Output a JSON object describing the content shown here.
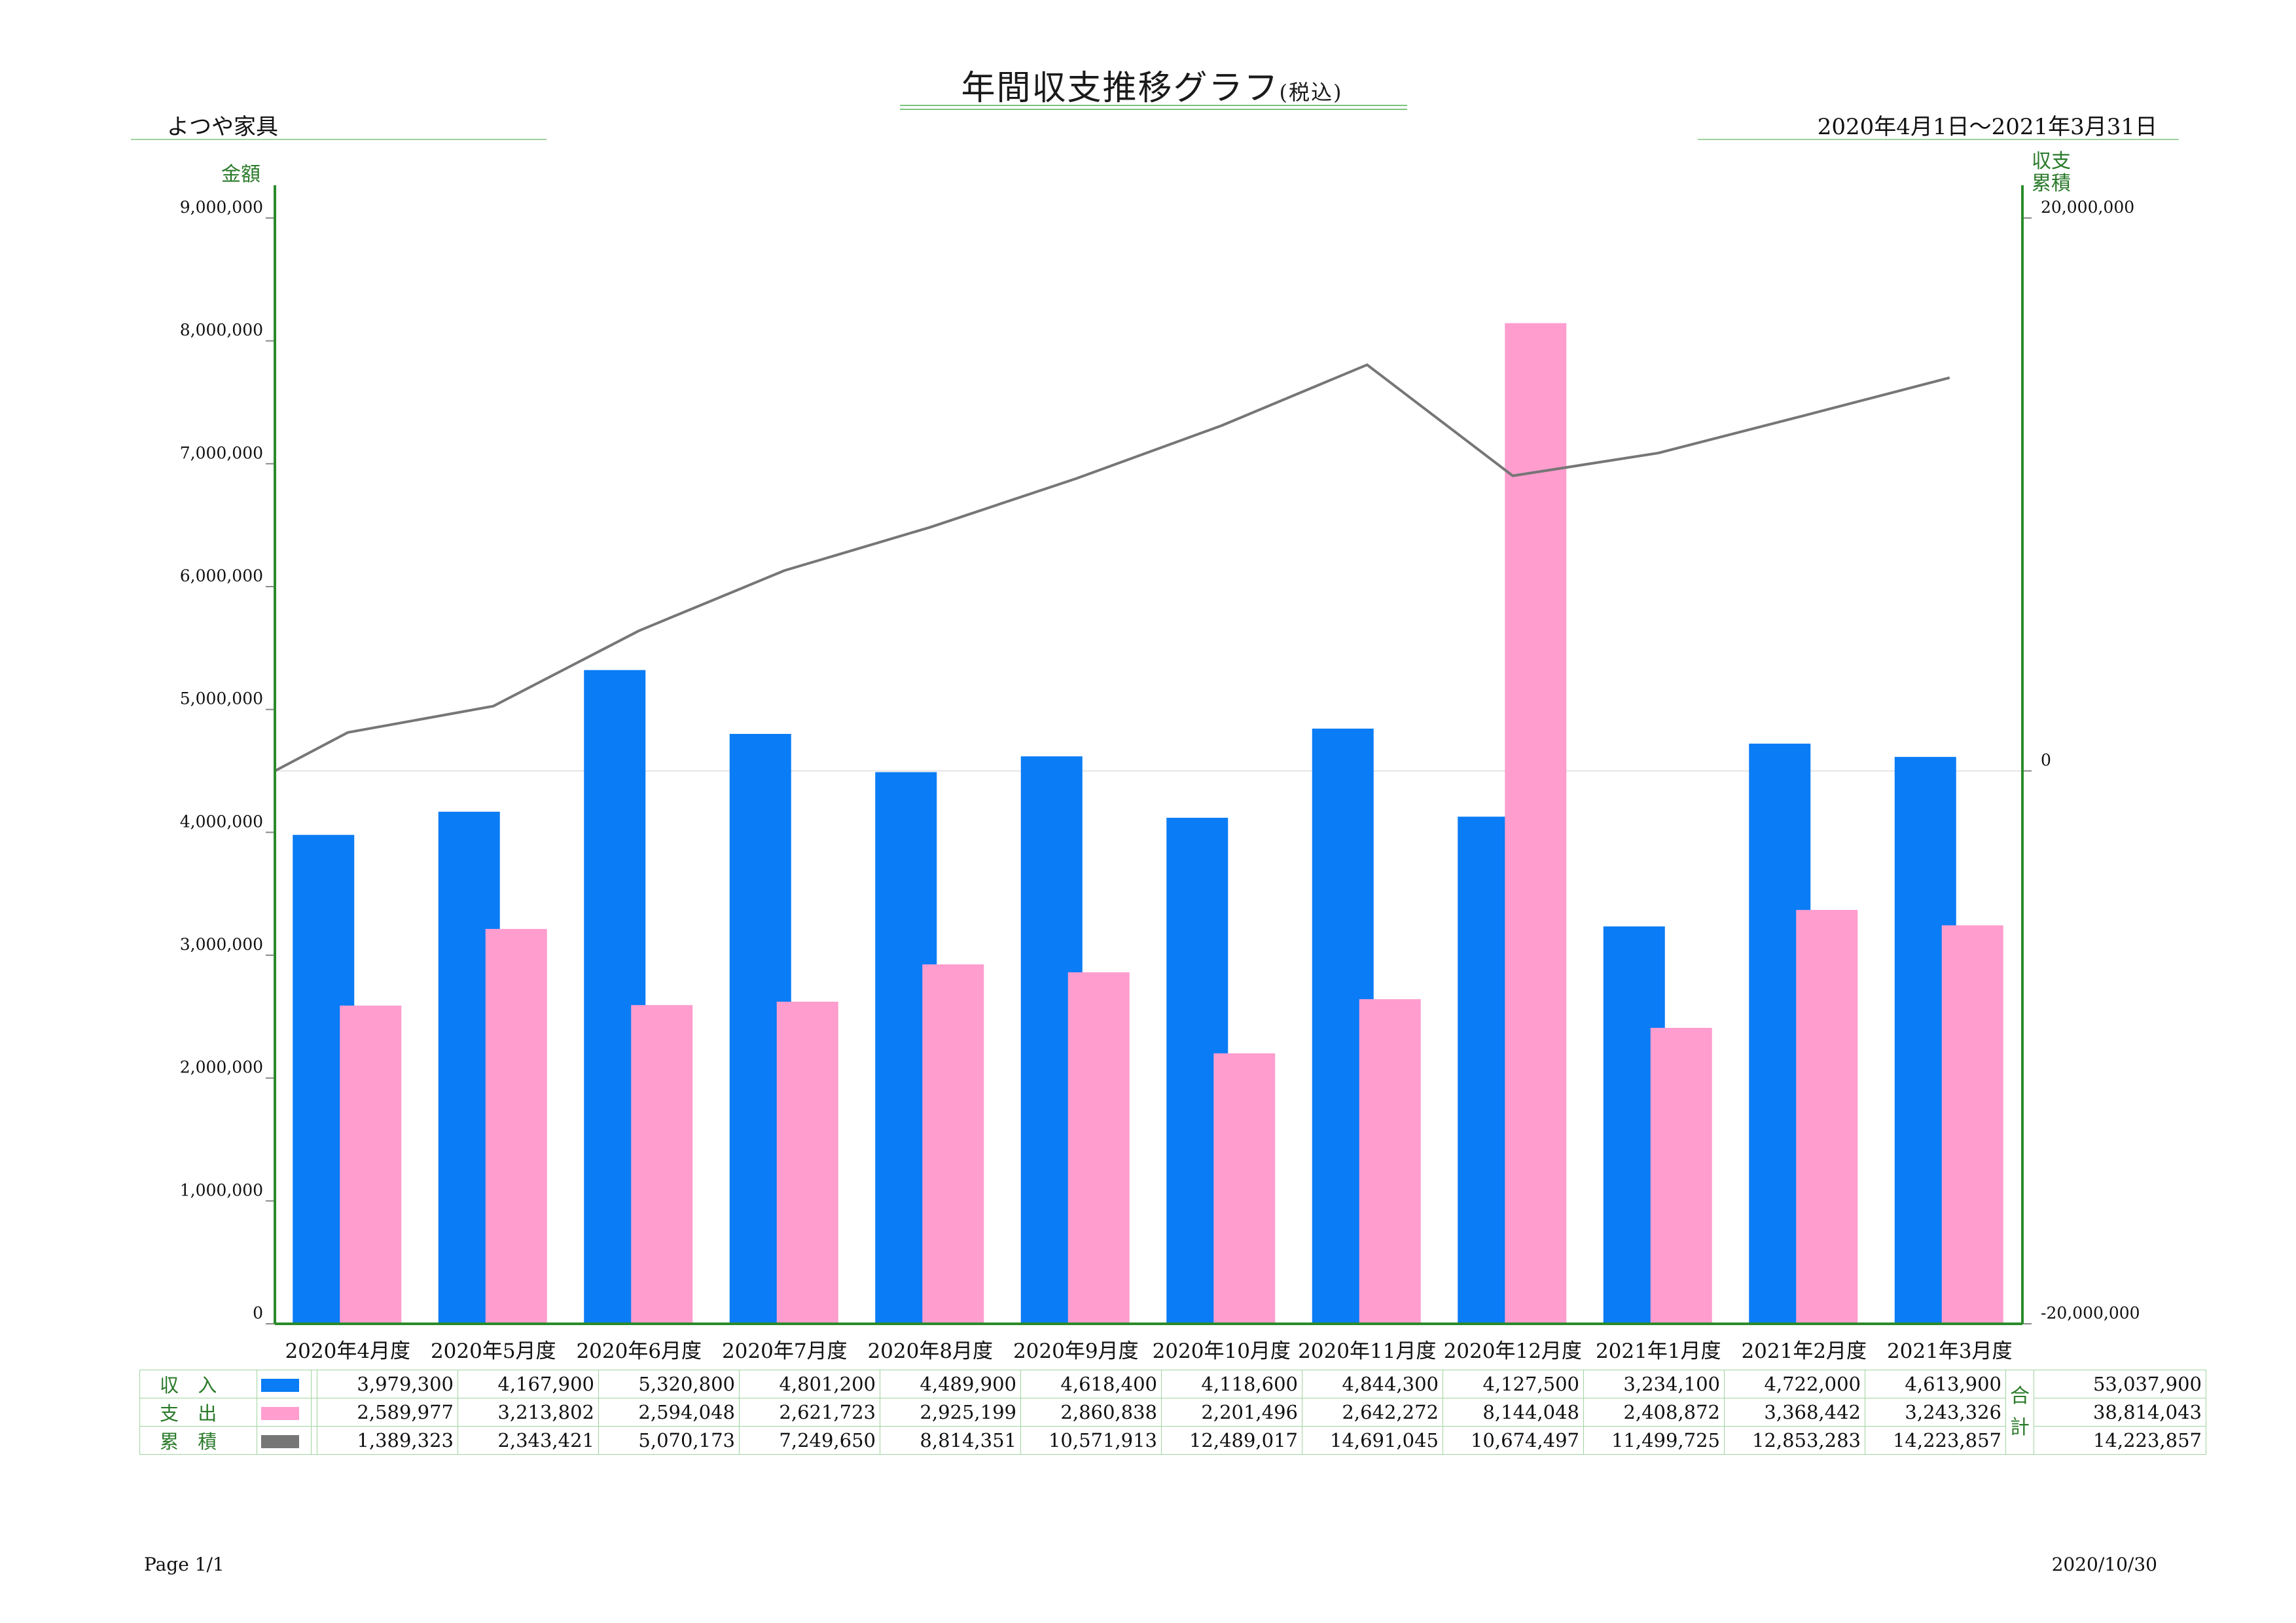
{
  "header": {
    "title": "年間収支推移グラフ",
    "title_note": "(税込)",
    "company": "よつや家具",
    "period": "2020年4月1日～2021年3月31日"
  },
  "axes": {
    "left_title": "金額",
    "right_title_line1": "収支",
    "right_title_line2": "累積"
  },
  "colors": {
    "income": "#0a7cf5",
    "expense": "#ff9dcf",
    "cumulative": "#767676",
    "axis": "#2a8a2a"
  },
  "chart_data": {
    "type": "bar",
    "categories": [
      "2020年4月度",
      "2020年5月度",
      "2020年6月度",
      "2020年7月度",
      "2020年8月度",
      "2020年9月度",
      "2020年10月度",
      "2020年11月度",
      "2020年12月度",
      "2021年1月度",
      "2021年2月度",
      "2021年3月度"
    ],
    "series": [
      {
        "name": "収入",
        "type": "bar",
        "axis": "left",
        "values": [
          3979300,
          4167900,
          5320800,
          4801200,
          4489900,
          4618400,
          4118600,
          4844300,
          4127500,
          3234100,
          4722000,
          4613900
        ]
      },
      {
        "name": "支出",
        "type": "bar",
        "axis": "left",
        "values": [
          2589977,
          3213802,
          2594048,
          2621723,
          2925199,
          2860838,
          2201496,
          2642272,
          8144048,
          2408872,
          3368442,
          3243326
        ]
      },
      {
        "name": "累積",
        "type": "line",
        "axis": "right",
        "values": [
          1389323,
          2343421,
          5070173,
          7249650,
          8814351,
          10571913,
          12489017,
          14691045,
          10674497,
          11499725,
          12853283,
          14223857
        ]
      }
    ],
    "ylim": [
      0,
      9000000
    ],
    "y_ticks": [
      "0",
      "1,000,000",
      "2,000,000",
      "3,000,000",
      "4,000,000",
      "5,000,000",
      "6,000,000",
      "7,000,000",
      "8,000,000",
      "9,000,000"
    ],
    "y2lim": [
      -20000000,
      20000000
    ],
    "y2_ticks": [
      "-20,000,000",
      "0",
      "20,000,000"
    ],
    "legend": "table-bottom"
  },
  "table": {
    "rows": [
      {
        "label": "収 入",
        "values": [
          "3,979,300",
          "4,167,900",
          "5,320,800",
          "4,801,200",
          "4,489,900",
          "4,618,400",
          "4,118,600",
          "4,844,300",
          "4,127,500",
          "3,234,100",
          "4,722,000",
          "4,613,900"
        ],
        "total": "53,037,900"
      },
      {
        "label": "支 出",
        "values": [
          "2,589,977",
          "3,213,802",
          "2,594,048",
          "2,621,723",
          "2,925,199",
          "2,860,838",
          "2,201,496",
          "2,642,272",
          "8,144,048",
          "2,408,872",
          "3,368,442",
          "3,243,326"
        ],
        "total": "38,814,043"
      },
      {
        "label": "累 積",
        "values": [
          "1,389,323",
          "2,343,421",
          "5,070,173",
          "7,249,650",
          "8,814,351",
          "10,571,913",
          "12,489,017",
          "14,691,045",
          "10,674,497",
          "11,499,725",
          "12,853,283",
          "14,223,857"
        ],
        "total": "14,223,857"
      }
    ],
    "total_label_1": "合",
    "total_label_2": "計"
  },
  "footer": {
    "page": "Page 1/1",
    "date": "2020/10/30"
  }
}
